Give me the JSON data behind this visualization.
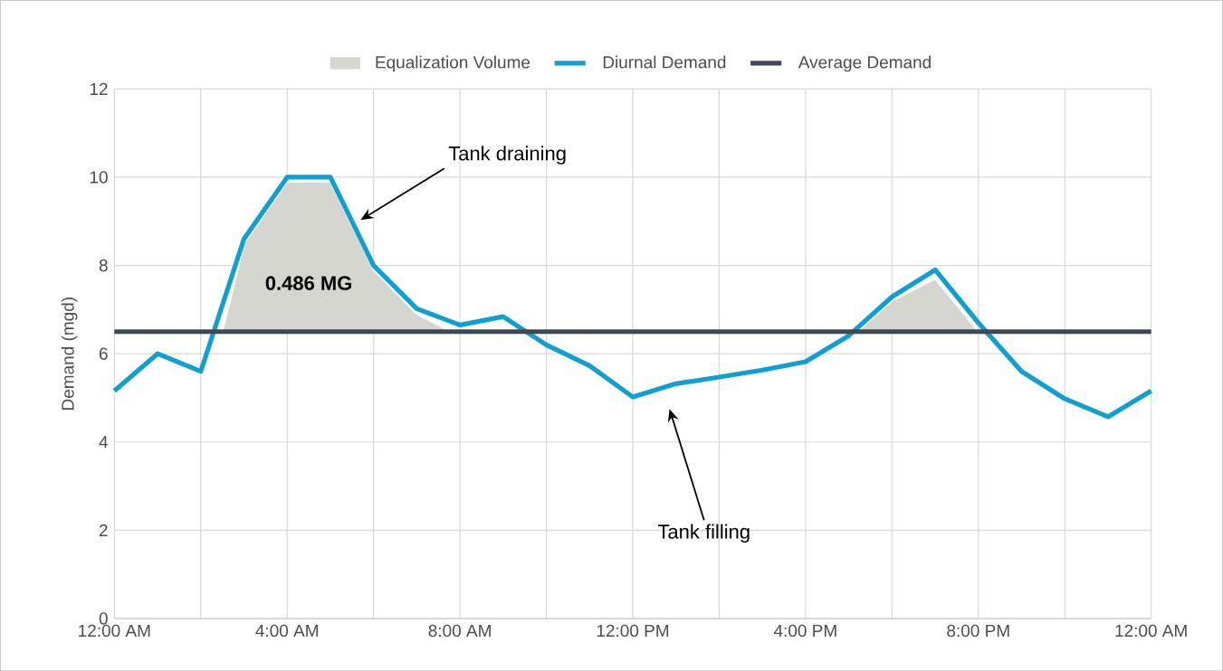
{
  "chart_data": {
    "type": "line",
    "ylabel": "Demand (mgd)",
    "xlim": [
      0,
      24
    ],
    "ylim": [
      0,
      12
    ],
    "xticks": [
      {
        "value": 0,
        "label": "12:00 AM"
      },
      {
        "value": 2,
        "label": null
      },
      {
        "value": 4,
        "label": "4:00 AM"
      },
      {
        "value": 6,
        "label": null
      },
      {
        "value": 8,
        "label": "8:00 AM"
      },
      {
        "value": 10,
        "label": null
      },
      {
        "value": 12,
        "label": "12:00 PM"
      },
      {
        "value": 14,
        "label": null
      },
      {
        "value": 16,
        "label": "4:00 PM"
      },
      {
        "value": 18,
        "label": null
      },
      {
        "value": 20,
        "label": "8:00 PM"
      },
      {
        "value": 22,
        "label": null
      },
      {
        "value": 24,
        "label": "12:00 AM"
      }
    ],
    "yticks": [
      0,
      2,
      4,
      6,
      8,
      10,
      12
    ],
    "grid": true,
    "legend": "top",
    "series": [
      {
        "name": "Equalization Volume",
        "type": "area",
        "color": "#d6d6d0",
        "x": [
          2.5,
          3,
          4,
          5,
          6,
          7,
          7.8,
          17.2,
          18,
          19,
          20
        ],
        "values": [
          6.5,
          8.5,
          9.9,
          9.9,
          7.9,
          6.9,
          6.5,
          6.5,
          7.2,
          7.7,
          6.5
        ]
      },
      {
        "name": "Diurnal Demand",
        "color": "#0fa0d0",
        "x": [
          0,
          1,
          2,
          3,
          4,
          5,
          6,
          7,
          8,
          9,
          10,
          11,
          12,
          13,
          14,
          15,
          16,
          17,
          18,
          19,
          20,
          21,
          22,
          23,
          24
        ],
        "values": [
          5.16,
          6.0,
          5.6,
          8.6,
          10.0,
          10.0,
          8.0,
          7.02,
          6.65,
          6.84,
          6.2,
          5.73,
          5.02,
          5.32,
          5.47,
          5.63,
          5.82,
          6.41,
          7.29,
          7.9,
          6.7,
          5.6,
          4.98,
          4.57,
          5.16
        ]
      },
      {
        "name": "Average Demand",
        "color": "#3f4850",
        "x": [
          0,
          24
        ],
        "values": [
          6.5,
          6.5
        ]
      }
    ],
    "annotations": [
      "**0.486 MG**",
      "Tank draining",
      "Tank filling"
    ]
  }
}
